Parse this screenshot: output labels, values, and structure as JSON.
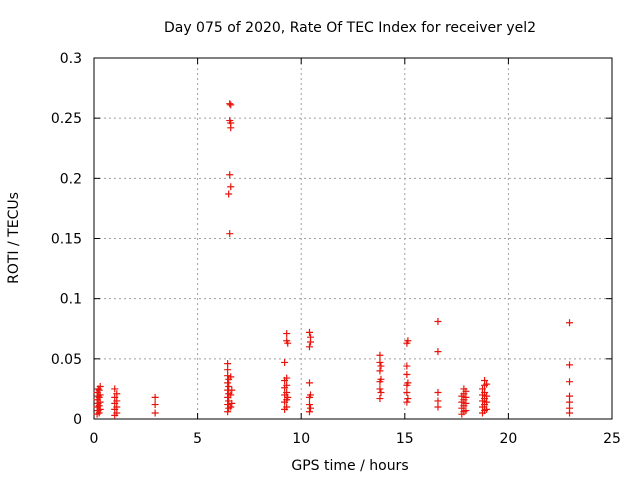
{
  "chart_data": {
    "type": "scatter",
    "title": "Day 075 of 2020, Rate Of TEC Index for receiver yel2",
    "xlabel": "GPS time / hours",
    "ylabel": "ROTI / TECUs",
    "xlim": [
      0,
      25
    ],
    "ylim": [
      0,
      0.3
    ],
    "xticks": [
      0,
      5,
      10,
      15,
      20,
      25
    ],
    "xtick_labels": [
      "0",
      "5",
      "10",
      "15",
      "20",
      "25"
    ],
    "yticks": [
      0,
      0.05,
      0.1,
      0.15,
      0.2,
      0.25,
      0.3
    ],
    "ytick_labels": [
      "0",
      "0.05",
      "0.1",
      "0.15",
      "0.2",
      "0.25",
      "0.3"
    ],
    "grid": true,
    "marker": "plus",
    "color": "#e8140c",
    "series": [
      {
        "name": "yel2",
        "points": [
          [
            0.15,
            0.004
          ],
          [
            0.15,
            0.01
          ],
          [
            0.15,
            0.016
          ],
          [
            0.15,
            0.022
          ],
          [
            0.2,
            0.007
          ],
          [
            0.2,
            0.013
          ],
          [
            0.2,
            0.019
          ],
          [
            0.2,
            0.025
          ],
          [
            0.25,
            0.005
          ],
          [
            0.25,
            0.011
          ],
          [
            0.25,
            0.018
          ],
          [
            0.25,
            0.024
          ],
          [
            0.3,
            0.008
          ],
          [
            0.3,
            0.014
          ],
          [
            0.3,
            0.02
          ],
          [
            0.3,
            0.027
          ],
          [
            1.0,
            0.003
          ],
          [
            1.0,
            0.008
          ],
          [
            1.0,
            0.013
          ],
          [
            1.0,
            0.018
          ],
          [
            1.0,
            0.025
          ],
          [
            1.1,
            0.005
          ],
          [
            1.1,
            0.01
          ],
          [
            1.1,
            0.015
          ],
          [
            1.1,
            0.021
          ],
          [
            2.95,
            0.005
          ],
          [
            2.95,
            0.012
          ],
          [
            2.95,
            0.018
          ],
          [
            6.45,
            0.006
          ],
          [
            6.45,
            0.012
          ],
          [
            6.45,
            0.018
          ],
          [
            6.45,
            0.024
          ],
          [
            6.45,
            0.03
          ],
          [
            6.45,
            0.036
          ],
          [
            6.45,
            0.041
          ],
          [
            6.45,
            0.046
          ],
          [
            6.5,
            0.009
          ],
          [
            6.5,
            0.015
          ],
          [
            6.5,
            0.021
          ],
          [
            6.5,
            0.027
          ],
          [
            6.5,
            0.033
          ],
          [
            6.5,
            0.187
          ],
          [
            6.55,
            0.262
          ],
          [
            6.55,
            0.248
          ],
          [
            6.55,
            0.203
          ],
          [
            6.55,
            0.154
          ],
          [
            6.6,
            0.261
          ],
          [
            6.6,
            0.246
          ],
          [
            6.6,
            0.242
          ],
          [
            6.6,
            0.193
          ],
          [
            6.6,
            0.01
          ],
          [
            6.6,
            0.02
          ],
          [
            6.6,
            0.035
          ],
          [
            6.65,
            0.013
          ],
          [
            6.65,
            0.024
          ],
          [
            9.2,
            0.008
          ],
          [
            9.2,
            0.014
          ],
          [
            9.2,
            0.02
          ],
          [
            9.2,
            0.026
          ],
          [
            9.2,
            0.032
          ],
          [
            9.2,
            0.047
          ],
          [
            9.3,
            0.01
          ],
          [
            9.3,
            0.016
          ],
          [
            9.3,
            0.022
          ],
          [
            9.3,
            0.028
          ],
          [
            9.3,
            0.034
          ],
          [
            9.3,
            0.065
          ],
          [
            9.3,
            0.071
          ],
          [
            9.35,
            0.018
          ],
          [
            9.35,
            0.063
          ],
          [
            10.4,
            0.006
          ],
          [
            10.4,
            0.012
          ],
          [
            10.4,
            0.018
          ],
          [
            10.4,
            0.03
          ],
          [
            10.4,
            0.06
          ],
          [
            10.4,
            0.072
          ],
          [
            10.45,
            0.009
          ],
          [
            10.45,
            0.02
          ],
          [
            10.45,
            0.064
          ],
          [
            10.45,
            0.068
          ],
          [
            13.8,
            0.017
          ],
          [
            13.8,
            0.025
          ],
          [
            13.8,
            0.031
          ],
          [
            13.8,
            0.04
          ],
          [
            13.8,
            0.047
          ],
          [
            13.8,
            0.053
          ],
          [
            13.85,
            0.022
          ],
          [
            13.85,
            0.033
          ],
          [
            13.85,
            0.044
          ],
          [
            15.1,
            0.014
          ],
          [
            15.1,
            0.022
          ],
          [
            15.1,
            0.028
          ],
          [
            15.1,
            0.037
          ],
          [
            15.1,
            0.044
          ],
          [
            15.1,
            0.063
          ],
          [
            15.15,
            0.017
          ],
          [
            15.15,
            0.03
          ],
          [
            15.15,
            0.065
          ],
          [
            16.6,
            0.01
          ],
          [
            16.6,
            0.015
          ],
          [
            16.6,
            0.022
          ],
          [
            16.6,
            0.056
          ],
          [
            16.6,
            0.081
          ],
          [
            17.75,
            0.004
          ],
          [
            17.75,
            0.009
          ],
          [
            17.75,
            0.014
          ],
          [
            17.75,
            0.019
          ],
          [
            17.85,
            0.006
          ],
          [
            17.85,
            0.011
          ],
          [
            17.85,
            0.016
          ],
          [
            17.85,
            0.021
          ],
          [
            17.85,
            0.025
          ],
          [
            17.95,
            0.007
          ],
          [
            17.95,
            0.013
          ],
          [
            17.95,
            0.018
          ],
          [
            17.95,
            0.023
          ],
          [
            18.75,
            0.005
          ],
          [
            18.75,
            0.01
          ],
          [
            18.75,
            0.015
          ],
          [
            18.75,
            0.02
          ],
          [
            18.75,
            0.025
          ],
          [
            18.85,
            0.007
          ],
          [
            18.85,
            0.012
          ],
          [
            18.85,
            0.017
          ],
          [
            18.85,
            0.022
          ],
          [
            18.85,
            0.028
          ],
          [
            18.85,
            0.032
          ],
          [
            18.95,
            0.008
          ],
          [
            18.95,
            0.014
          ],
          [
            18.95,
            0.019
          ],
          [
            18.95,
            0.029
          ],
          [
            22.95,
            0.005
          ],
          [
            22.95,
            0.009
          ],
          [
            22.95,
            0.014
          ],
          [
            22.95,
            0.019
          ],
          [
            22.95,
            0.031
          ],
          [
            22.95,
            0.045
          ],
          [
            22.95,
            0.08
          ]
        ]
      }
    ]
  }
}
